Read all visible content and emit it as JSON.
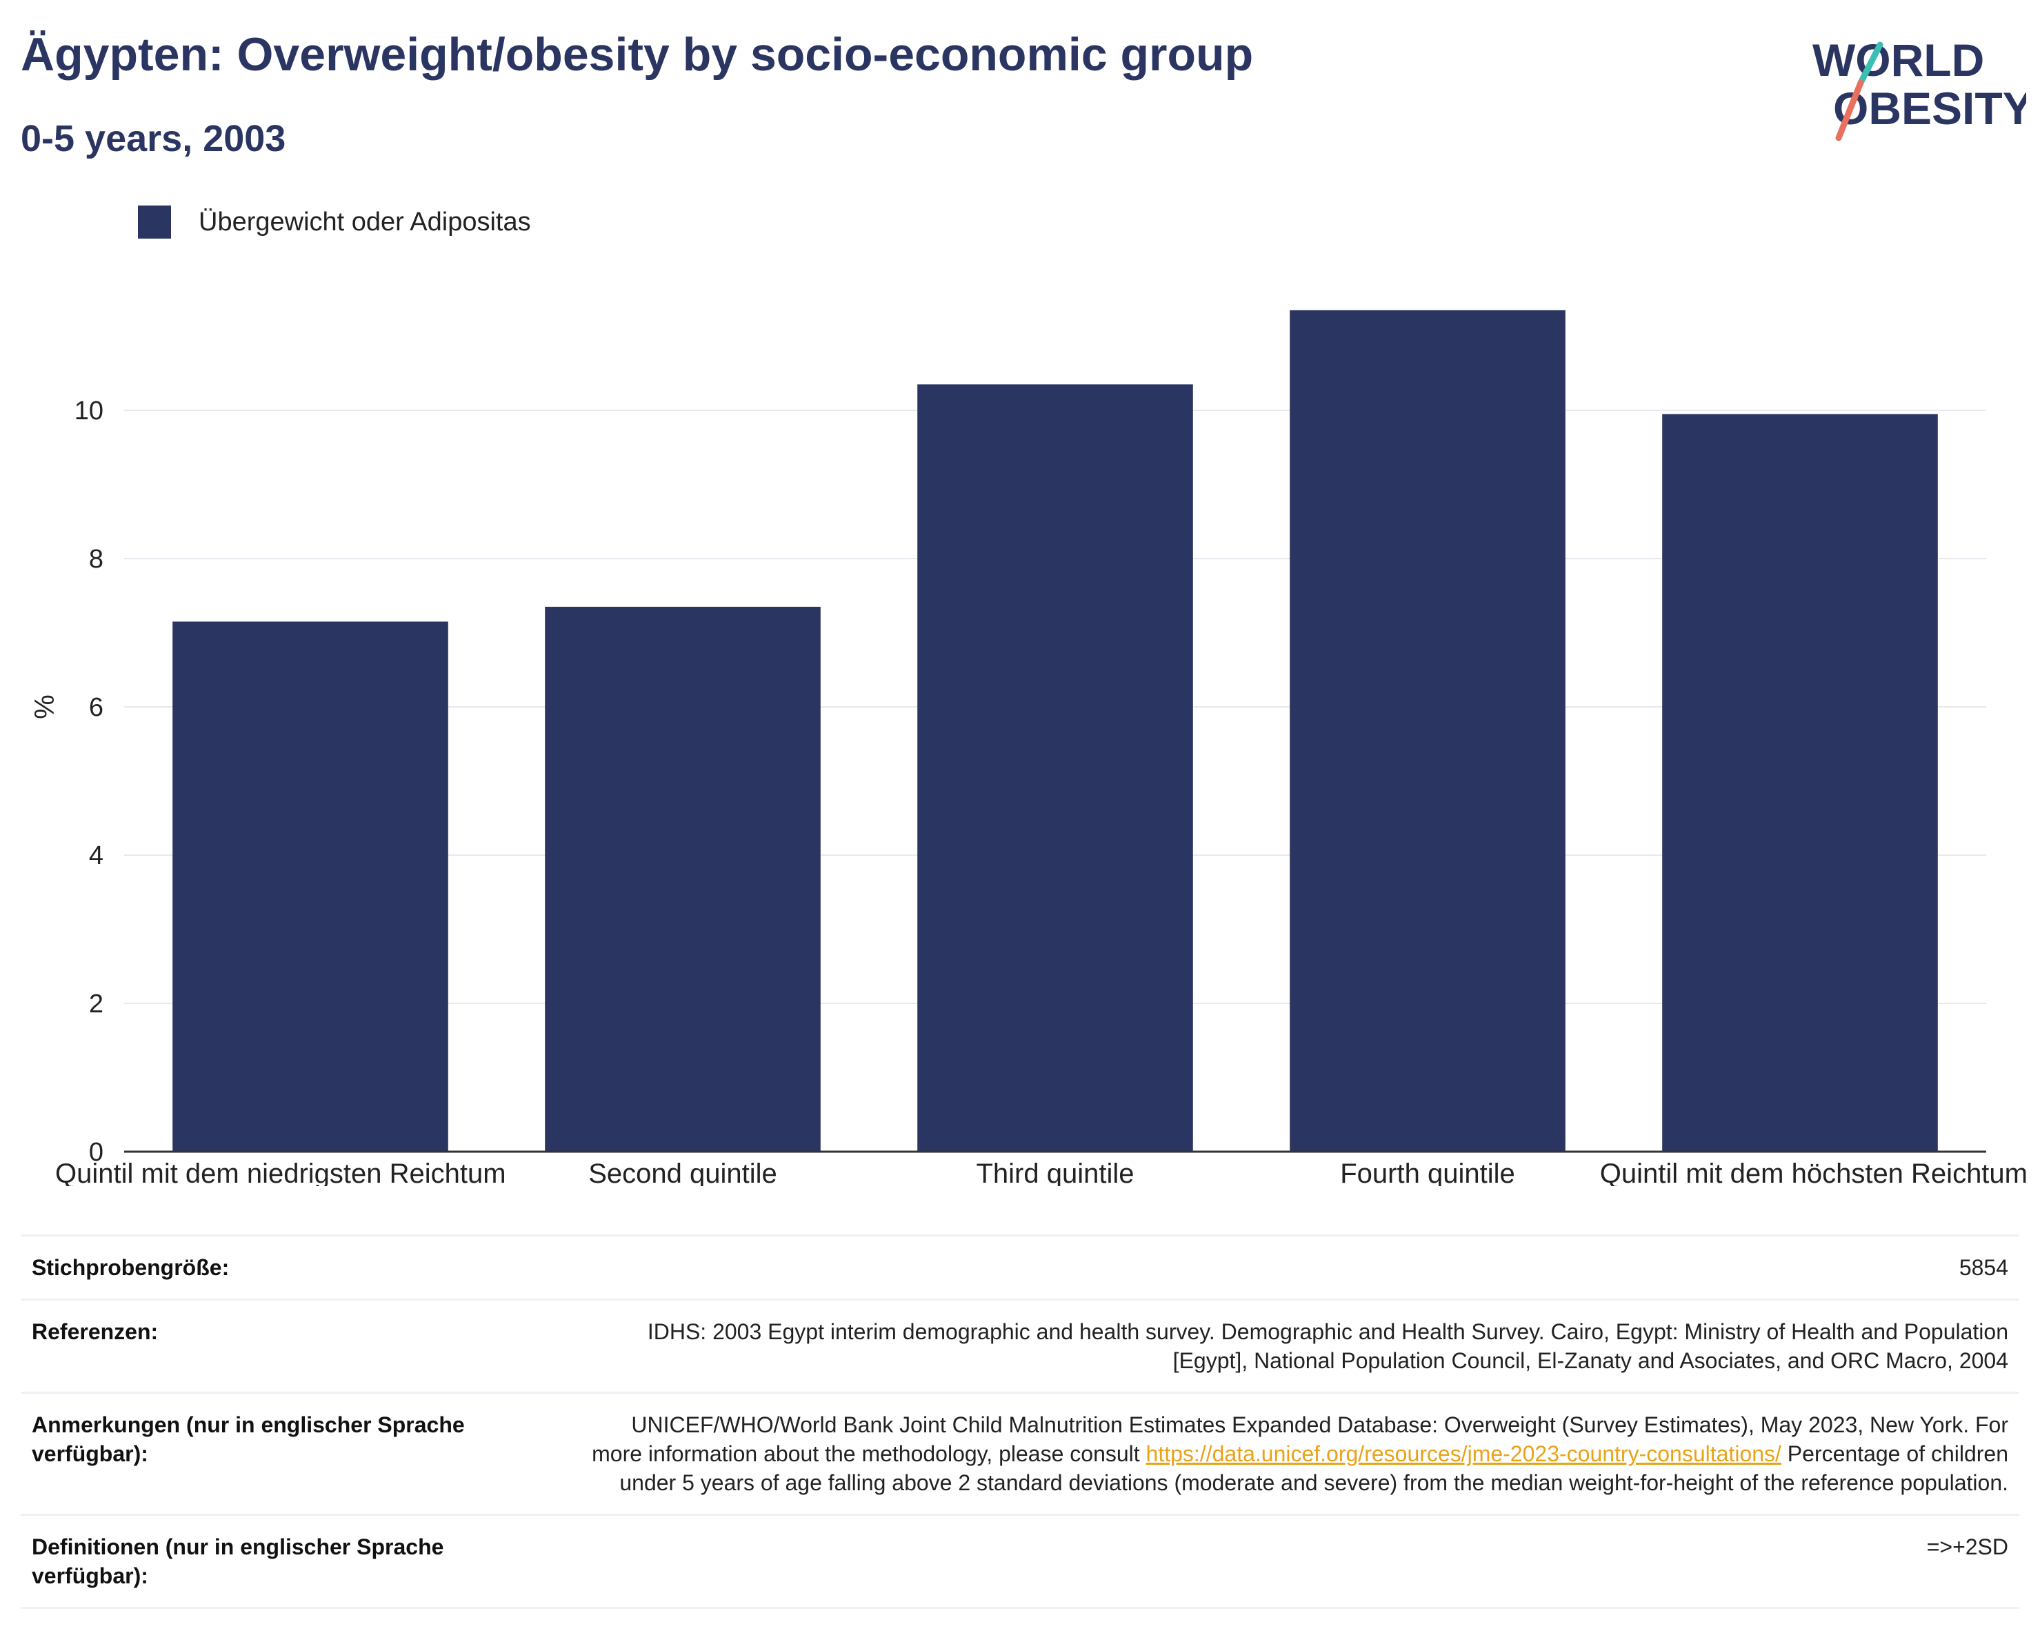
{
  "header": {
    "title": "Ägypten: Overweight/obesity by socio-economic group",
    "subtitle": "0-5 years, 2003"
  },
  "logo": {
    "line1": "WORLD",
    "line2": "OBESITY"
  },
  "colors": {
    "bar": "#2b3561",
    "title": "#2b3561",
    "logo_teal": "#3bbfb2",
    "logo_coral": "#e8705f",
    "link": "#e8a317"
  },
  "chart_data": {
    "type": "bar",
    "categories": [
      "Quintil mit dem niedrigsten Reichtum",
      "Second quintile",
      "Third quintile",
      "Fourth quintile",
      "Quintil mit dem höchsten Reichtum"
    ],
    "series": [
      {
        "name": "Übergewicht oder Adipositas",
        "values": [
          7.15,
          7.35,
          10.35,
          11.35,
          9.95
        ]
      }
    ],
    "ylabel": "%",
    "xlabel": "",
    "ylim": [
      0,
      12
    ],
    "yticks": [
      0,
      2,
      4,
      6,
      8,
      10
    ],
    "grid": true,
    "legend_position": "top-left"
  },
  "info": {
    "sample_label": "Stichprobengröße:",
    "sample_value": "5854",
    "references_label": "Referenzen:",
    "references_value": "IDHS: 2003 Egypt interim demographic and health survey. Demographic and Health Survey. Cairo, Egypt: Ministry of Health and Population [Egypt], National Population Council, El-Zanaty and Asociates, and ORC Macro, 2004",
    "notes_label": "Anmerkungen (nur in englischer Sprache verfügbar):",
    "notes_text_before": "UNICEF/WHO/World Bank Joint Child Malnutrition Estimates Expanded Database: Overweight (Survey Estimates), May 2023, New York. For more information about the methodology, please consult",
    "notes_link": "https://data.unicef.org/resources/jme-2023-country-consultations/",
    "notes_text_after": "Percentage of children under 5 years of age falling above 2 standard deviations (moderate and severe) from the median weight-for-height of the reference population.",
    "definitions_label": "Definitionen (nur in englischer Sprache verfügbar):",
    "definitions_value": "=>+2SD"
  }
}
